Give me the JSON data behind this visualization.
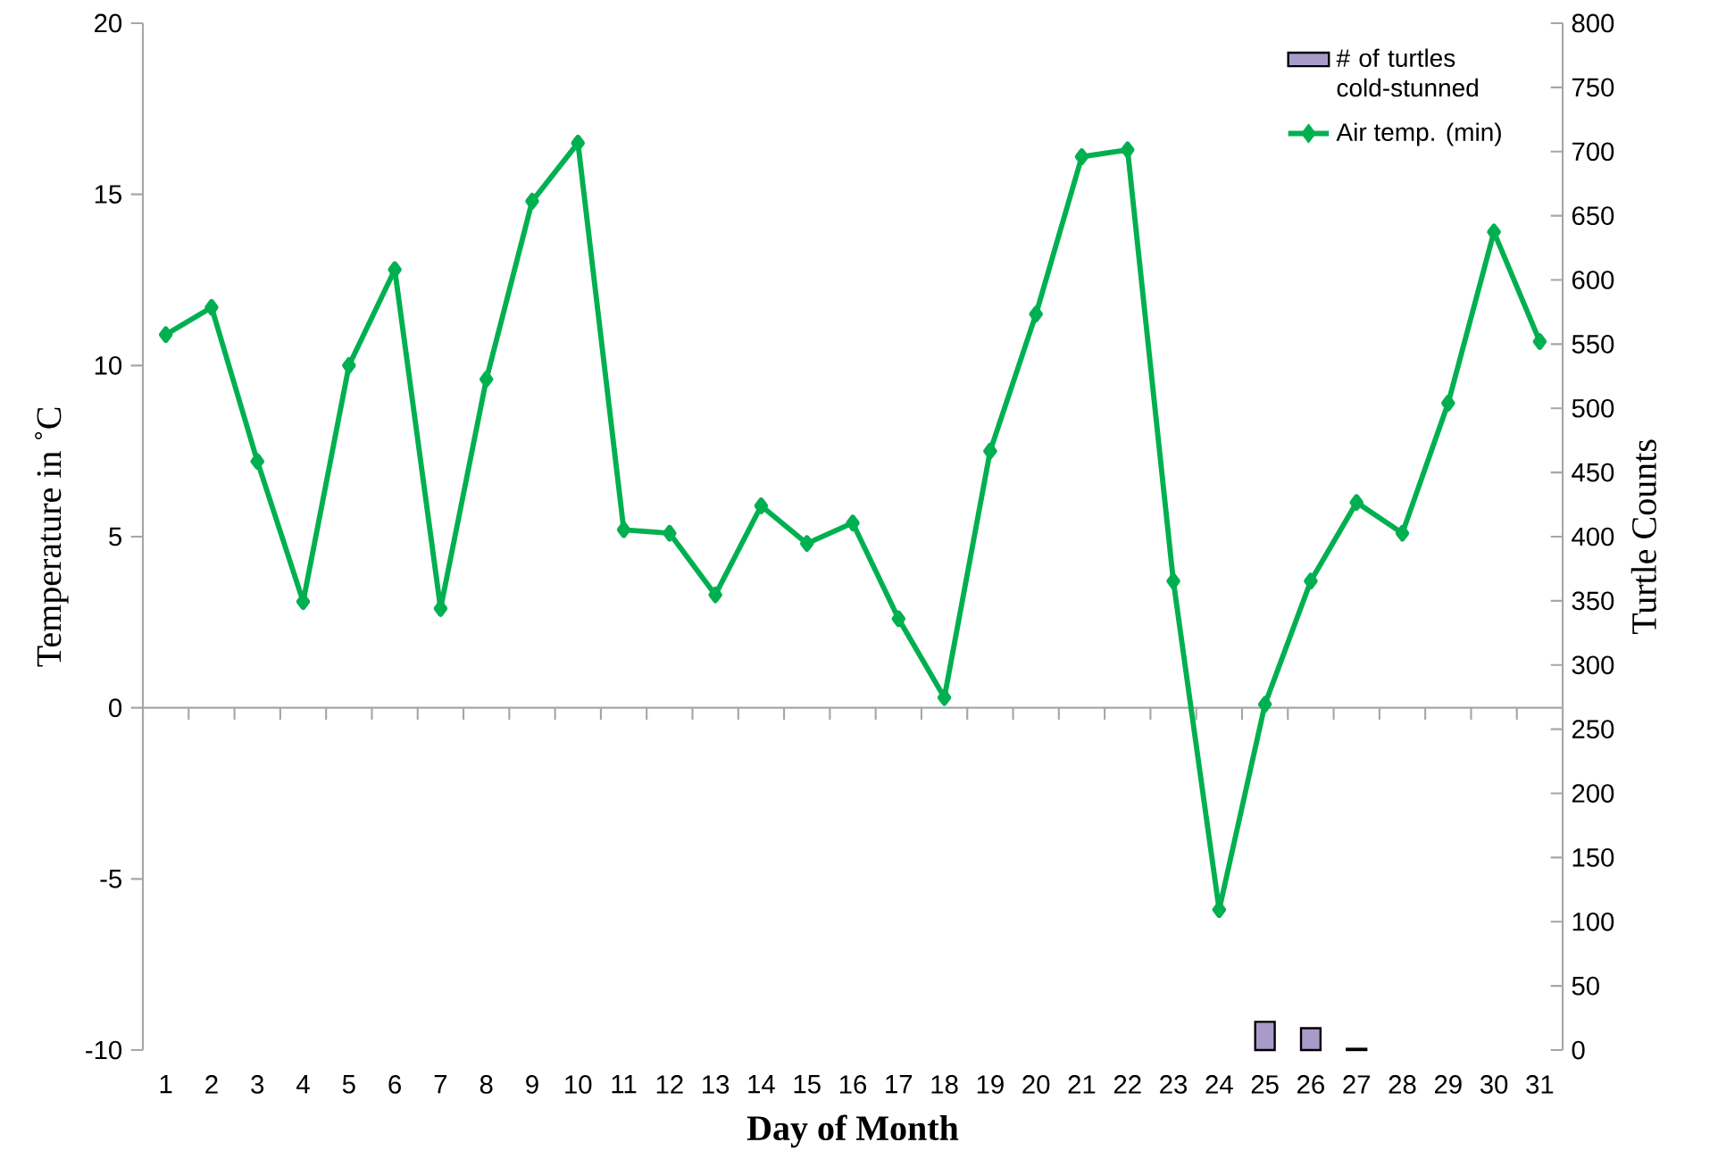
{
  "chart_data": {
    "type": "line",
    "categories": [
      "1",
      "2",
      "3",
      "4",
      "5",
      "6",
      "7",
      "8",
      "9",
      "10",
      "11",
      "12",
      "13",
      "14",
      "15",
      "16",
      "17",
      "18",
      "19",
      "20",
      "21",
      "22",
      "23",
      "24",
      "25",
      "26",
      "27",
      "28",
      "29",
      "30",
      "31"
    ],
    "series": [
      {
        "name": "# of turtles cold-stunned",
        "type": "bar",
        "axis": "y2",
        "color": "#a99bc9",
        "values": [
          null,
          null,
          null,
          null,
          null,
          null,
          null,
          null,
          null,
          null,
          null,
          null,
          null,
          null,
          null,
          null,
          null,
          null,
          null,
          null,
          null,
          null,
          null,
          null,
          22,
          17,
          1,
          null,
          null,
          null,
          null
        ]
      },
      {
        "name": "Air temp. (min)",
        "color": "#00b050",
        "values": [
          10.9,
          11.7,
          7.2,
          3.1,
          10.0,
          12.8,
          2.9,
          9.6,
          14.8,
          16.5,
          5.2,
          5.1,
          3.3,
          5.9,
          4.8,
          5.4,
          2.6,
          0.3,
          7.5,
          11.5,
          16.1,
          16.3,
          3.7,
          -5.9,
          0.1,
          3.7,
          6.0,
          5.1,
          8.9,
          13.9,
          10.7
        ]
      }
    ],
    "xlabel": "Day of Month",
    "ylabel": "Temperature in ˚C",
    "y2label": "Turtle Counts",
    "ylim": [
      -10,
      20
    ],
    "yticks": [
      -10,
      -5,
      0,
      5,
      10,
      15,
      20
    ],
    "y2lim": [
      0,
      800
    ],
    "y2ticks": [
      0,
      50,
      100,
      150,
      200,
      250,
      300,
      350,
      400,
      450,
      500,
      550,
      600,
      650,
      700,
      750,
      800
    ],
    "marker": "diamond",
    "legend": "top right"
  }
}
